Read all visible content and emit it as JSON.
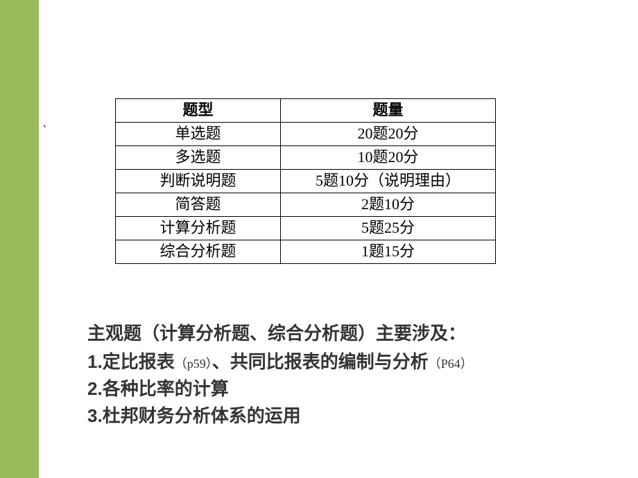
{
  "colors": {
    "sidebar": "#9bba5a",
    "background": "#ffffff",
    "text": "#000000",
    "notes_text": "#333333",
    "border": "#000000"
  },
  "tick_mark": "、",
  "table": {
    "headers": {
      "type": "题型",
      "amount": "题量"
    },
    "rows": [
      {
        "type": "单选题",
        "amount": "20题20分"
      },
      {
        "type": "多选题",
        "amount": "10题20分"
      },
      {
        "type": "判断说明题",
        "amount": "5题10分（说明理由）"
      },
      {
        "type": "简答题",
        "amount": "2题10分"
      },
      {
        "type": "计算分析题",
        "amount": "5题25分"
      },
      {
        "type": "综合分析题",
        "amount": "1题15分"
      }
    ]
  },
  "notes": {
    "title": "主观题（计算分析题、综合分析题）主要涉及：",
    "items": [
      {
        "num": "1.",
        "text_a": "定比报表",
        "ref_a": "（p59）",
        "text_b": "、共同比报表的编制与分析",
        "ref_b": "（P64）"
      },
      {
        "num": "2.",
        "text_a": "各种比率的计算",
        "ref_a": "",
        "text_b": "",
        "ref_b": ""
      },
      {
        "num": "3.",
        "text_a": "杜邦财务分析体系的运用",
        "ref_a": "",
        "text_b": "",
        "ref_b": ""
      }
    ]
  }
}
